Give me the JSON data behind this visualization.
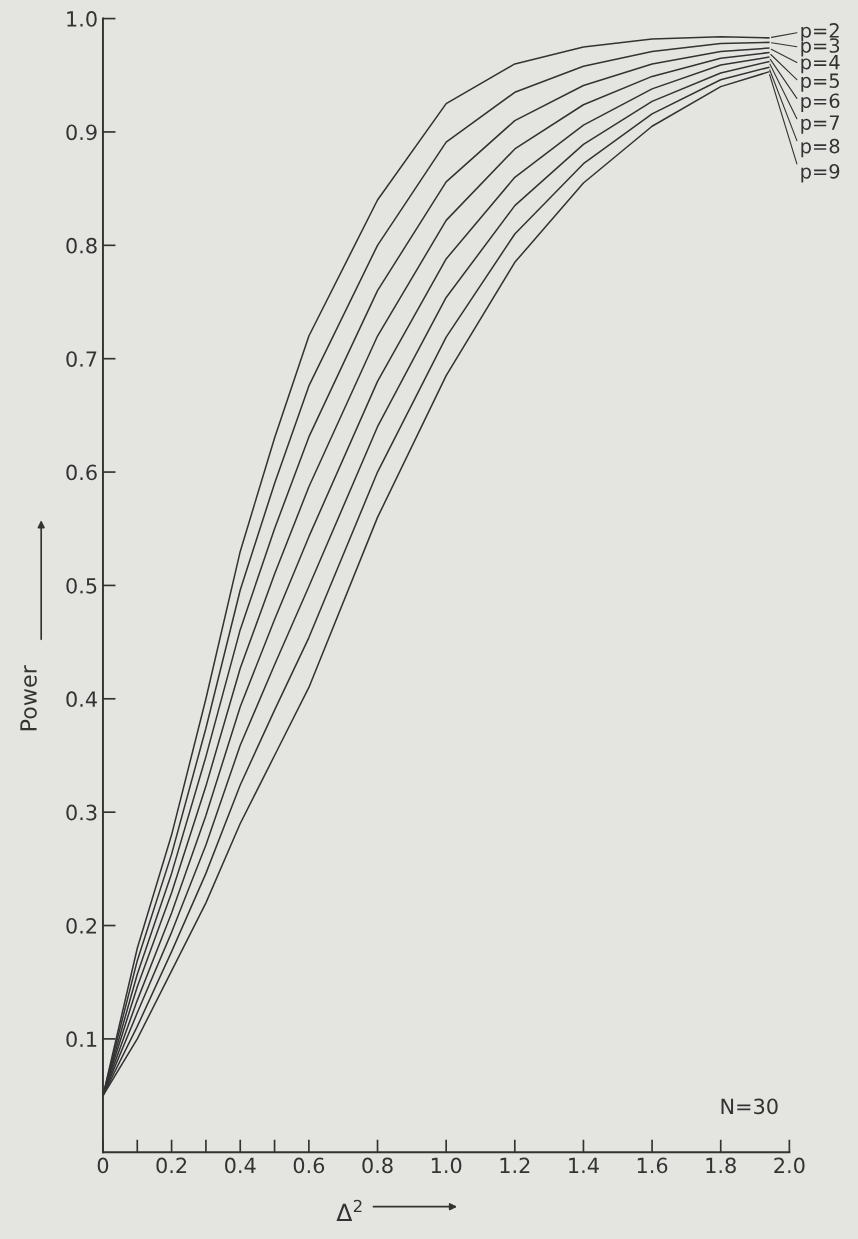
{
  "chart_data": {
    "type": "line",
    "xlabel": "Δ$^{2}$",
    "ylabel": "Power",
    "annotations": [
      "N=30"
    ],
    "x": [
      0,
      0.1,
      0.2,
      0.3,
      0.4,
      0.5,
      0.6,
      0.8,
      1.0,
      1.2,
      1.4,
      1.6,
      1.8,
      1.94
    ],
    "series": [
      {
        "name": "p=2",
        "color": "#333333",
        "values": [
          0.05,
          0.18,
          0.28,
          0.4,
          0.53,
          0.63,
          0.72,
          0.84,
          0.925,
          0.96,
          0.975,
          0.982,
          0.984,
          0.983
        ]
      },
      {
        "name": "p=3",
        "color": "#333333",
        "values": [
          0.05,
          0.169,
          0.263,
          0.374,
          0.496,
          0.59,
          0.676,
          0.8,
          0.891,
          0.935,
          0.958,
          0.971,
          0.978,
          0.979
        ]
      },
      {
        "name": "p=4",
        "color": "#333333",
        "values": [
          0.05,
          0.157,
          0.246,
          0.349,
          0.461,
          0.55,
          0.631,
          0.76,
          0.856,
          0.91,
          0.941,
          0.96,
          0.971,
          0.974
        ]
      },
      {
        "name": "p=5",
        "color": "#333333",
        "values": [
          0.05,
          0.146,
          0.229,
          0.323,
          0.427,
          0.51,
          0.587,
          0.72,
          0.822,
          0.885,
          0.924,
          0.949,
          0.965,
          0.97
        ]
      },
      {
        "name": "p=6",
        "color": "#333333",
        "values": [
          0.05,
          0.134,
          0.211,
          0.297,
          0.393,
          0.47,
          0.543,
          0.68,
          0.788,
          0.86,
          0.906,
          0.938,
          0.959,
          0.966
        ]
      },
      {
        "name": "p=7",
        "color": "#333333",
        "values": [
          0.05,
          0.123,
          0.194,
          0.271,
          0.359,
          0.43,
          0.499,
          0.64,
          0.754,
          0.835,
          0.889,
          0.927,
          0.952,
          0.962
        ]
      },
      {
        "name": "p=8",
        "color": "#333333",
        "values": [
          0.05,
          0.111,
          0.177,
          0.246,
          0.324,
          0.39,
          0.454,
          0.6,
          0.719,
          0.81,
          0.872,
          0.916,
          0.946,
          0.957
        ]
      },
      {
        "name": "p=9",
        "color": "#333333",
        "values": [
          0.05,
          0.1,
          0.16,
          0.22,
          0.29,
          0.35,
          0.41,
          0.56,
          0.685,
          0.785,
          0.855,
          0.905,
          0.94,
          0.953
        ]
      }
    ],
    "xlim": [
      0,
      2.0
    ],
    "xticks": [
      0,
      {
        "value": 0.1,
        "label": null
      },
      0.2,
      {
        "value": 0.3,
        "label": null
      },
      0.4,
      {
        "value": 0.5,
        "label": null
      },
      0.6,
      0.8,
      {
        "value": 1.0,
        "label": "1.0"
      },
      1.2,
      1.4,
      1.6,
      1.8,
      {
        "value": 2.0,
        "label": "2.0"
      }
    ],
    "ylim": [
      0,
      1.0
    ],
    "yticks": [
      0.1,
      0.2,
      0.3,
      0.4,
      0.5,
      0.6,
      0.7,
      0.8,
      0.9,
      {
        "value": 1.0,
        "label": "1.0"
      }
    ],
    "grid": false,
    "legend": "right",
    "marker": "none",
    "line_style": "solid"
  }
}
